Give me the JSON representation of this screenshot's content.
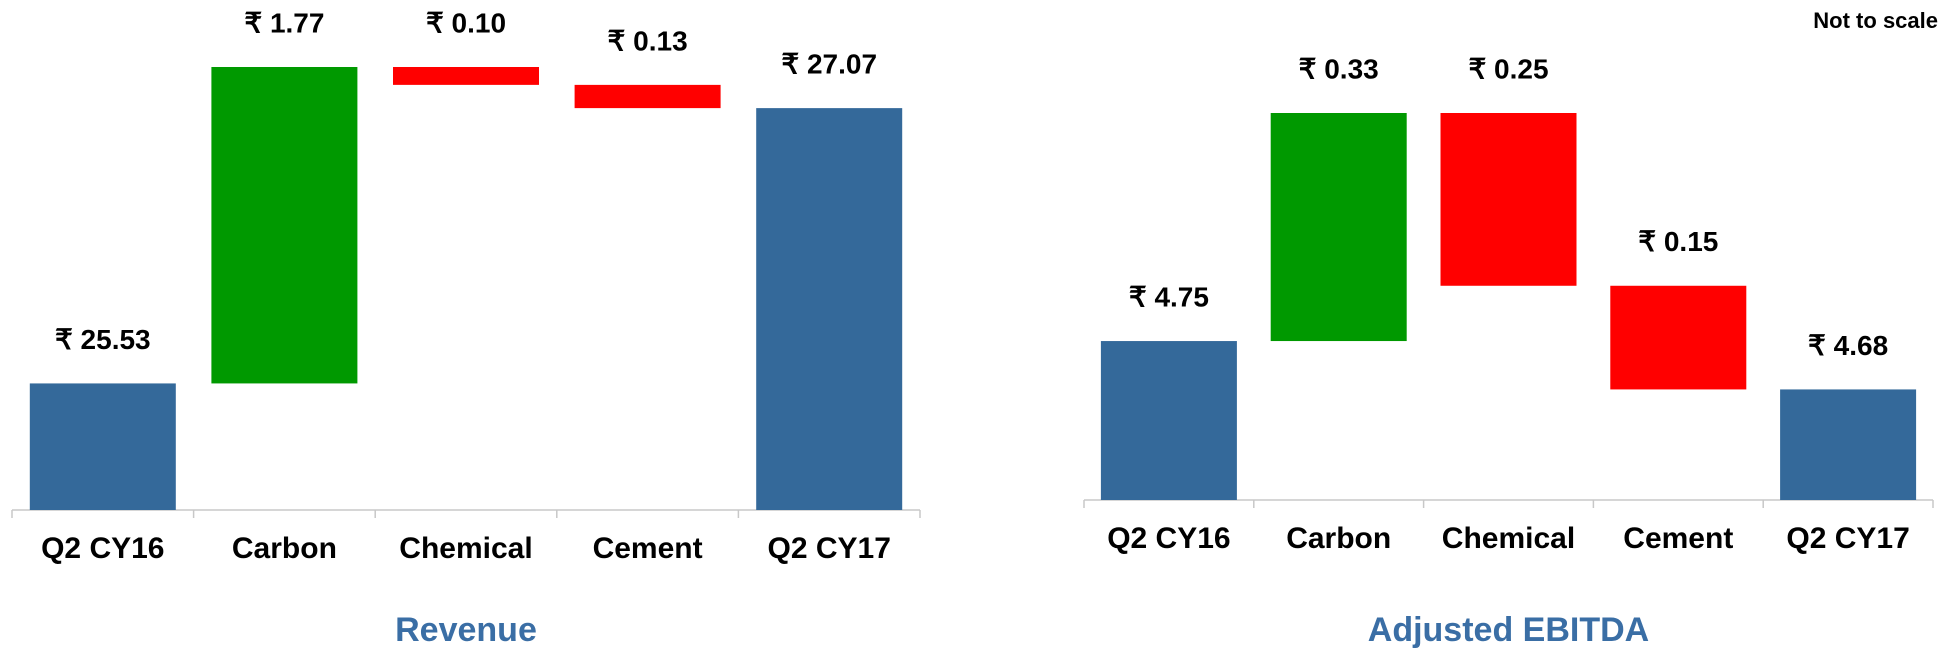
{
  "chart_data": [
    {
      "type": "waterfall",
      "title": "Revenue",
      "categories": [
        "Q2 CY16",
        "Carbon",
        "Chemical",
        "Cement",
        "Q2 CY17"
      ],
      "measure": [
        "absolute",
        "relative",
        "relative",
        "relative",
        "absolute"
      ],
      "values": [
        25.53,
        1.77,
        -0.1,
        -0.13,
        27.07
      ],
      "value_labels": [
        "₹ 25.53",
        "₹ 1.77",
        "₹ 0.10",
        "₹ 0.13",
        "₹ 27.07"
      ],
      "colors": [
        "#34699a",
        "#009900",
        "#ff0000",
        "#ff0000",
        "#34699a"
      ]
    },
    {
      "type": "waterfall",
      "title": "Adjusted EBITDA",
      "annotation": "Not to scale",
      "categories": [
        "Q2 CY16",
        "Carbon",
        "Chemical",
        "Cement",
        "Q2 CY17"
      ],
      "measure": [
        "absolute",
        "relative",
        "relative",
        "relative",
        "absolute"
      ],
      "values": [
        4.75,
        0.33,
        -0.25,
        -0.15,
        4.68
      ],
      "value_labels": [
        "₹ 4.75",
        "₹ 0.33",
        "₹ 0.25",
        "₹ 0.15",
        "₹ 4.68"
      ],
      "colors": [
        "#34699a",
        "#009900",
        "#ff0000",
        "#ff0000",
        "#34699a"
      ]
    }
  ]
}
